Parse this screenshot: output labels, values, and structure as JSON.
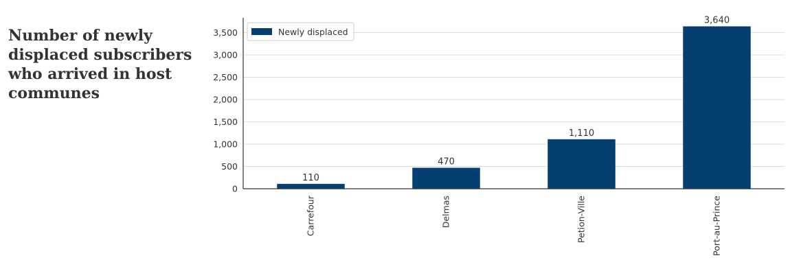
{
  "page": {
    "title": "Number of  newly\ndisplaced subscribers\nwho arrived in host\ncommunes"
  },
  "colors": {
    "bar": "#053e70",
    "grid": "#dddddd",
    "axis": "#333333"
  },
  "chart_data": {
    "type": "bar",
    "categories": [
      "Carrefour",
      "Delmas",
      "Petion-Ville",
      "Port-au-Prince"
    ],
    "series": [
      {
        "name": "Newly displaced",
        "values": [
          110,
          470,
          1110,
          3640
        ]
      }
    ],
    "data_labels": [
      "110",
      "470",
      "1,110",
      "3,640"
    ],
    "y_ticks": [
      0,
      500,
      1000,
      1500,
      2000,
      2500,
      3000,
      3500
    ],
    "y_tick_labels": [
      "0",
      "500",
      "1,000",
      "1,500",
      "2,000",
      "2,500",
      "3,000",
      "3,500"
    ],
    "ylim": [
      0,
      3800
    ],
    "xlabel": "",
    "ylabel": "",
    "grid": true,
    "legend_position": "top-left"
  }
}
